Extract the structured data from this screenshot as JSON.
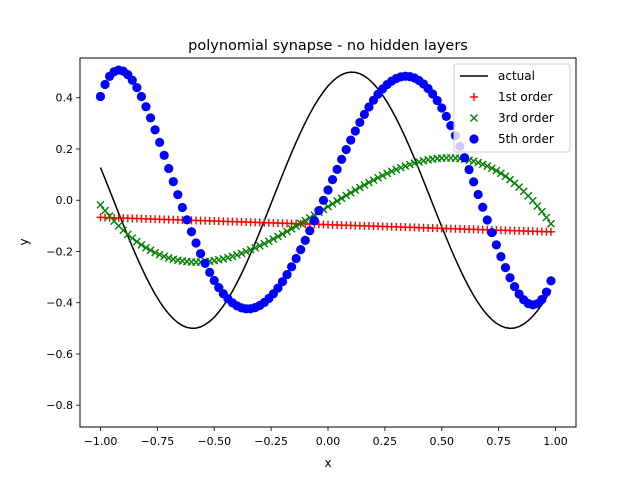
{
  "chart_data": {
    "type": "scatter",
    "title": "polynomial synapse - no hidden layers",
    "xlabel": "x",
    "ylabel": "y",
    "xlim": [
      -1.09,
      1.09
    ],
    "ylim": [
      -0.885,
      0.555
    ],
    "xticks": [
      -1.0,
      -0.75,
      -0.5,
      -0.25,
      0.0,
      0.25,
      0.5,
      0.75,
      1.0
    ],
    "xtick_labels": [
      "−1.00",
      "−0.75",
      "−0.50",
      "−0.25",
      "0.00",
      "0.25",
      "0.50",
      "0.75",
      "1.00"
    ],
    "yticks": [
      -0.8,
      -0.6,
      -0.4,
      -0.2,
      0.0,
      0.2,
      0.4
    ],
    "ytick_labels": [
      "−0.8",
      "−0.6",
      "−0.4",
      "−0.2",
      "0.0",
      "0.2",
      "0.4"
    ],
    "grid": false,
    "legend_position": "top-right",
    "x_range": [
      -1.0,
      0.98
    ],
    "n_points": 100,
    "series": [
      {
        "name": "actual",
        "kind": "line",
        "color": "#000000",
        "model": "sin",
        "amplitude": 0.5,
        "angular_freq": 4.5,
        "phase": 1.1
      },
      {
        "name": "1st order",
        "kind": "scatter",
        "marker": "plus",
        "color": "#ff0000",
        "model": "poly",
        "coef": [
          -0.0955,
          -0.0285
        ]
      },
      {
        "name": "3rd order",
        "kind": "scatter",
        "marker": "x",
        "color": "#008000",
        "model": "poly",
        "coef": [
          -0.025,
          0.55,
          -0.043,
          -0.6
        ]
      },
      {
        "name": "5th order",
        "kind": "scatter",
        "marker": "circle",
        "color": "#0000ff",
        "model": "poly",
        "coef": [
          0.04,
          2.02,
          -0.1,
          -6.4,
          0.135,
          4.05
        ]
      }
    ]
  }
}
